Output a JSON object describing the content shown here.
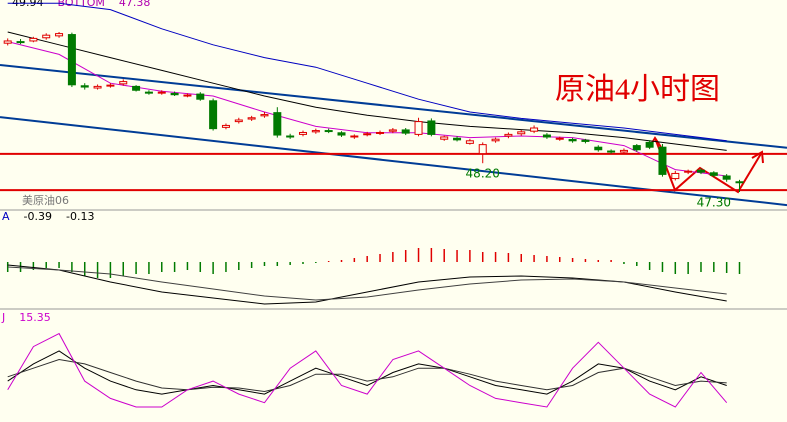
{
  "chart_data": [
    {
      "type": "candlestick",
      "title": "原油4小时图",
      "symbol": "美原油06",
      "header_texts": [
        "49.94",
        "BOTTOM",
        "47.38"
      ],
      "header_colors": [
        "#000000",
        "#b000b0",
        "#b000b0"
      ],
      "xlim": [
        0.4,
        61.7
      ],
      "ylim": [
        46.8,
        53.3
      ],
      "up_color": "#e00000",
      "down_color": "#007a00",
      "open": [
        51.95,
        52.0,
        52.02,
        52.12,
        52.18,
        52.22,
        50.62,
        50.55,
        50.62,
        50.68,
        50.6,
        50.42,
        50.4,
        50.38,
        50.3,
        50.36,
        50.15,
        49.32,
        49.5,
        49.58,
        49.68,
        49.78,
        49.05,
        49.1,
        49.18,
        49.22,
        49.15,
        49.02,
        49.1,
        49.14,
        49.2,
        49.24,
        49.1,
        49.52,
        48.95,
        48.98,
        48.82,
        48.5,
        48.9,
        49.05,
        49.12,
        49.2,
        49.08,
        48.95,
        48.94,
        48.92,
        48.7,
        48.58,
        48.55,
        48.75,
        48.85,
        48.7,
        47.72,
        47.92,
        47.98,
        47.9,
        47.8,
        47.62
      ],
      "high": [
        52.1,
        52.08,
        52.15,
        52.26,
        52.3,
        52.28,
        50.7,
        50.66,
        50.7,
        50.82,
        50.64,
        50.48,
        50.48,
        50.44,
        50.38,
        50.42,
        50.22,
        49.44,
        49.62,
        49.68,
        49.8,
        49.95,
        49.12,
        49.22,
        49.28,
        49.28,
        49.2,
        49.1,
        49.18,
        49.22,
        49.3,
        49.3,
        49.62,
        49.6,
        49.06,
        49.04,
        48.96,
        48.85,
        49.0,
        49.16,
        49.24,
        49.38,
        49.14,
        49.03,
        48.99,
        48.96,
        48.76,
        48.63,
        48.66,
        48.8,
        48.92,
        48.8,
        47.96,
        48.0,
        48.04,
        47.95,
        47.86,
        47.68
      ],
      "low": [
        51.88,
        51.92,
        51.98,
        52.06,
        52.12,
        50.58,
        50.5,
        50.5,
        50.56,
        50.62,
        50.44,
        50.34,
        50.34,
        50.3,
        50.26,
        50.15,
        49.22,
        49.26,
        49.44,
        49.52,
        49.62,
        49.0,
        48.96,
        49.04,
        49.12,
        49.14,
        49.02,
        48.96,
        49.04,
        49.08,
        49.14,
        49.08,
        49.04,
        49.04,
        48.9,
        48.88,
        48.78,
        48.2,
        48.84,
        48.98,
        49.06,
        49.14,
        48.96,
        48.9,
        48.84,
        48.82,
        48.56,
        48.5,
        48.5,
        48.56,
        48.64,
        47.78,
        47.66,
        47.86,
        47.86,
        47.76,
        47.62,
        47.3
      ],
      "close": [
        52.02,
        51.98,
        52.1,
        52.2,
        52.25,
        50.65,
        50.58,
        50.6,
        50.64,
        50.75,
        50.48,
        50.4,
        50.42,
        50.34,
        50.33,
        50.2,
        49.28,
        49.38,
        49.55,
        49.62,
        49.72,
        49.08,
        49.02,
        49.16,
        49.22,
        49.2,
        49.08,
        49.05,
        49.12,
        49.16,
        49.24,
        49.14,
        49.5,
        49.1,
        49.02,
        48.93,
        48.9,
        48.78,
        48.95,
        49.1,
        49.18,
        49.3,
        49.02,
        48.98,
        48.9,
        48.88,
        48.62,
        48.55,
        48.6,
        48.62,
        48.7,
        47.85,
        47.88,
        47.95,
        47.92,
        47.82,
        47.7,
        47.6
      ],
      "lines": [
        {
          "color": "#cc00cc",
          "x": [
            1,
            5,
            9,
            13,
            17,
            21,
            25,
            29,
            33,
            37,
            41,
            45,
            49,
            53,
            57
          ],
          "values": [
            52.0,
            51.6,
            50.7,
            50.45,
            50.3,
            49.8,
            49.35,
            49.15,
            49.15,
            49.0,
            49.05,
            49.0,
            48.75,
            48.0,
            47.8
          ]
        },
        {
          "color": "#000000",
          "x": [
            1,
            5,
            9,
            13,
            17,
            21,
            25,
            29,
            33,
            37,
            41,
            45,
            49,
            53,
            57
          ],
          "values": [
            52.3,
            51.9,
            51.5,
            51.1,
            50.7,
            50.3,
            49.95,
            49.7,
            49.5,
            49.35,
            49.25,
            49.15,
            49.0,
            48.8,
            48.6
          ]
        },
        {
          "color": "#0000c0",
          "x": [
            1,
            5,
            9,
            13,
            17,
            21,
            25,
            29,
            33,
            37,
            41,
            45,
            49,
            53,
            57
          ],
          "values": [
            53.2,
            53.2,
            53.0,
            52.4,
            51.9,
            51.5,
            51.2,
            50.7,
            50.2,
            49.8,
            49.6,
            49.45,
            49.3,
            49.1,
            48.9
          ]
        }
      ],
      "trendlines": [
        {
          "color": "#003c96",
          "x": [
            0.4,
            61.7
          ],
          "values": [
            51.27,
            48.68
          ]
        },
        {
          "color": "#003c96",
          "x": [
            0.4,
            61.7
          ],
          "values": [
            49.64,
            46.89
          ]
        }
      ],
      "hlines": {
        "color": "#e00000",
        "values": [
          48.49,
          47.36
        ]
      },
      "annotations": [
        {
          "value": 48.2,
          "label": "48.20",
          "x": 38
        },
        {
          "value": 47.3,
          "label": "47.30",
          "x": 56
        }
      ]
    },
    {
      "type": "macd",
      "header_texts": [
        "A",
        "-0.39",
        "-0.13"
      ],
      "header_colors": [
        "#0000c0",
        "#000000",
        "#000000"
      ],
      "xlim": [
        0.4,
        61.7
      ],
      "ylim": [
        -0.5,
        0.5
      ],
      "up_color": "#e00000",
      "down_color": "#007a00",
      "values": [
        -0.1,
        -0.1,
        -0.08,
        -0.06,
        -0.06,
        -0.1,
        -0.14,
        -0.16,
        -0.16,
        -0.14,
        -0.12,
        -0.12,
        -0.1,
        -0.1,
        -0.08,
        -0.1,
        -0.12,
        -0.1,
        -0.08,
        -0.06,
        -0.04,
        -0.04,
        -0.03,
        -0.02,
        -0.01,
        0.01,
        0.02,
        0.04,
        0.06,
        0.08,
        0.1,
        0.12,
        0.14,
        0.14,
        0.13,
        0.12,
        0.12,
        0.1,
        0.1,
        0.09,
        0.08,
        0.07,
        0.06,
        0.05,
        0.04,
        0.03,
        0.02,
        0.02,
        -0.02,
        -0.04,
        -0.08,
        -0.1,
        -0.12,
        -0.12,
        -0.1,
        -0.1,
        -0.11,
        -0.12
      ],
      "lines": [
        {
          "color": "#000000",
          "x": [
            1,
            5,
            9,
            13,
            17,
            21,
            25,
            29,
            33,
            37,
            41,
            45,
            49,
            53,
            57
          ],
          "values": [
            -0.03,
            -0.08,
            -0.2,
            -0.3,
            -0.36,
            -0.42,
            -0.4,
            -0.3,
            -0.2,
            -0.15,
            -0.14,
            -0.16,
            -0.2,
            -0.3,
            -0.39
          ]
        },
        {
          "color": "#404040",
          "x": [
            1,
            5,
            9,
            13,
            17,
            21,
            25,
            29,
            33,
            37,
            41,
            45,
            49,
            53,
            57
          ],
          "values": [
            -0.05,
            -0.08,
            -0.12,
            -0.2,
            -0.27,
            -0.34,
            -0.38,
            -0.35,
            -0.28,
            -0.22,
            -0.18,
            -0.17,
            -0.2,
            -0.26,
            -0.32
          ]
        }
      ]
    },
    {
      "type": "kdj",
      "header_texts": [
        "J",
        "15.35"
      ],
      "header_colors": [
        "#cc00cc",
        "#cc00cc"
      ],
      "xlim": [
        0.4,
        61.7
      ],
      "ylim": [
        -5,
        105
      ],
      "lines": [
        {
          "color": "#000000",
          "x": [
            1,
            3,
            5,
            7,
            9,
            11,
            13,
            15,
            17,
            19,
            21,
            23,
            25,
            27,
            29,
            31,
            33,
            35,
            37,
            39,
            41,
            43,
            45,
            47,
            49,
            51,
            53,
            55,
            57
          ],
          "values": [
            40,
            60,
            75,
            55,
            40,
            30,
            25,
            30,
            35,
            30,
            25,
            40,
            55,
            45,
            35,
            50,
            60,
            55,
            45,
            35,
            30,
            25,
            40,
            60,
            55,
            40,
            30,
            45,
            35
          ]
        },
        {
          "color": "#303030",
          "x": [
            1,
            3,
            5,
            7,
            9,
            11,
            13,
            15,
            17,
            19,
            21,
            23,
            25,
            27,
            29,
            31,
            33,
            35,
            37,
            39,
            41,
            43,
            45,
            47,
            49,
            51,
            53,
            55,
            57
          ],
          "values": [
            45,
            55,
            65,
            60,
            50,
            40,
            32,
            30,
            33,
            32,
            28,
            35,
            48,
            48,
            40,
            45,
            55,
            55,
            48,
            40,
            35,
            30,
            35,
            50,
            55,
            45,
            35,
            40,
            38
          ]
        },
        {
          "color": "#cc00cc",
          "x": [
            1,
            3,
            5,
            7,
            9,
            11,
            13,
            15,
            17,
            19,
            21,
            23,
            25,
            27,
            29,
            31,
            33,
            35,
            37,
            39,
            41,
            43,
            45,
            47,
            49,
            51,
            53,
            55,
            57
          ],
          "values": [
            30,
            80,
            95,
            40,
            20,
            10,
            10,
            30,
            40,
            25,
            15,
            55,
            75,
            35,
            25,
            65,
            75,
            55,
            35,
            20,
            15,
            10,
            55,
            85,
            55,
            25,
            10,
            50,
            15
          ]
        }
      ]
    }
  ]
}
